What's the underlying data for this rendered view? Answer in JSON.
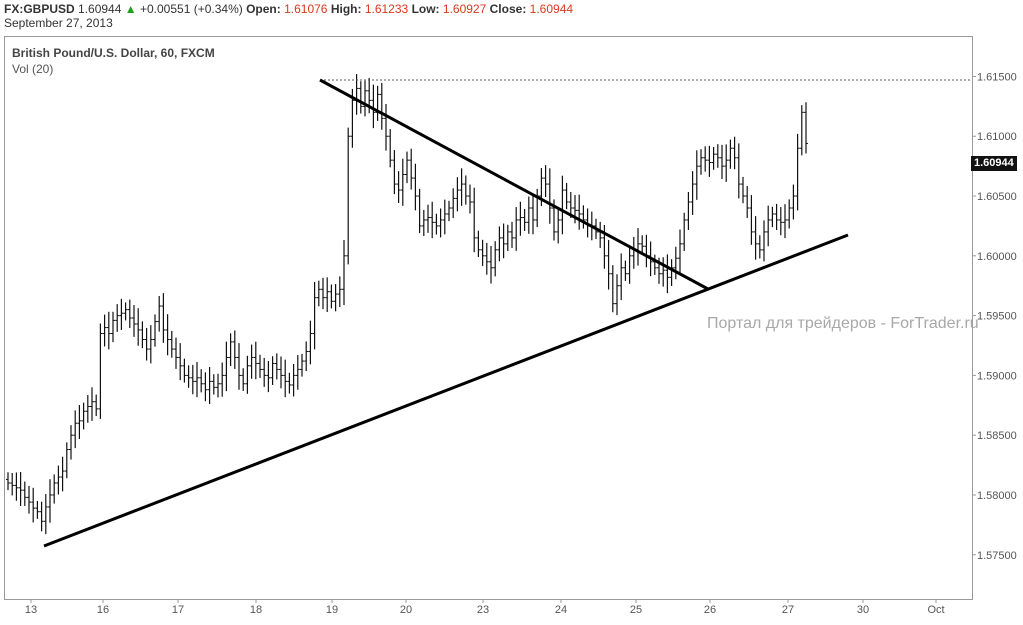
{
  "header": {
    "symbol": "FX:GBPUSD",
    "last": "1.60944",
    "change": "+0.00551 (+0.34%)",
    "open_label": "Open:",
    "open": "1.61076",
    "high_label": "High:",
    "high": "1.61233",
    "low_label": "Low:",
    "low": "1.60927",
    "close_label": "Close:",
    "close": "1.60944",
    "date": "September 27, 2013"
  },
  "panel": {
    "title": "British Pound/U.S. Dollar, 60, FXCM",
    "volume_label": "Vol (20)"
  },
  "watermark": "Портал для трейдеров - ForTrader.ru",
  "colors": {
    "candles": "#111111",
    "trendlines": "#000000",
    "up_arrow": "#21a020",
    "values": "#d9381e"
  },
  "chart_data": {
    "type": "ohlc",
    "ylim": [
      1.5713,
      1.6183
    ],
    "y_ticks": [
      "1.57500",
      "1.58000",
      "1.58500",
      "1.59000",
      "1.59500",
      "1.60000",
      "1.60500",
      "1.61000",
      "1.61500"
    ],
    "last_price": "1.60944",
    "x_ticks": [
      "13",
      "16",
      "17",
      "18",
      "19",
      "20",
      "23",
      "24",
      "25",
      "26",
      "27",
      "30",
      "Oct"
    ],
    "bars_per_day": 24,
    "close_series": [
      1.581,
      1.5808,
      1.5806,
      1.5804,
      1.5798,
      1.5794,
      1.5789,
      1.5786,
      1.5778,
      1.579,
      1.58,
      1.581,
      1.5815,
      1.582,
      1.5838,
      1.585,
      1.586,
      1.5862,
      1.587,
      1.5874,
      1.5878,
      1.5872,
      1.5935,
      1.594,
      1.5935,
      1.5946,
      1.595,
      1.5952,
      1.5955,
      1.5948,
      1.5943,
      1.5938,
      1.593,
      1.5922,
      1.593,
      1.5945,
      1.5958,
      1.5938,
      1.593,
      1.5922,
      1.5915,
      1.5908,
      1.59,
      1.5898,
      1.5895,
      1.5898,
      1.5893,
      1.5888,
      1.5895,
      1.589,
      1.5893,
      1.59,
      1.5915,
      1.5928,
      1.5915,
      1.59,
      1.5893,
      1.5908,
      1.5915,
      1.591,
      1.5905,
      1.59,
      1.5898,
      1.591,
      1.5905,
      1.59,
      1.5895,
      1.5892,
      1.59,
      1.5905,
      1.5912,
      1.592,
      1.5935,
      1.5965,
      1.5972,
      1.5965,
      1.597,
      1.5962,
      1.5968,
      1.5972,
      1.6,
      1.61,
      1.613,
      1.614,
      1.6125,
      1.6138,
      1.613,
      1.612,
      1.6135,
      1.6115,
      1.61,
      1.608,
      1.606,
      1.6055,
      1.6068,
      1.608,
      1.6065,
      1.605,
      1.6025,
      1.603,
      1.6032,
      1.6028,
      1.6025,
      1.603,
      1.6035,
      1.604,
      1.6048,
      1.6055,
      1.606,
      1.605,
      1.6045,
      1.6015,
      1.6005,
      1.6,
      1.5995,
      1.599,
      1.6005,
      1.6015,
      1.601,
      1.602,
      1.6015,
      1.603,
      1.6032,
      1.6028,
      1.604,
      1.603,
      1.605,
      1.6065,
      1.606,
      1.604,
      1.602,
      1.603,
      1.6055,
      1.6045,
      1.604,
      1.6038,
      1.6035,
      1.603,
      1.6025,
      1.6025,
      1.602,
      1.6015,
      1.6,
      1.5985,
      1.596,
      1.5975,
      1.599,
      1.5985,
      1.6,
      1.6005,
      1.601,
      1.6008,
      1.6,
      1.5995,
      1.599,
      1.5985,
      1.5988,
      1.5982,
      1.599,
      1.5998,
      1.601,
      1.603,
      1.6045,
      1.606,
      1.6075,
      1.6082,
      1.608,
      1.6078,
      1.6085,
      1.6082,
      1.6075,
      1.608,
      1.609,
      1.6082,
      1.606,
      1.605,
      1.604,
      1.602,
      1.601,
      1.6005,
      1.602,
      1.603,
      1.6035,
      1.603,
      1.6028,
      1.603,
      1.604,
      1.605,
      1.609,
      1.612,
      1.6094
    ]
  }
}
